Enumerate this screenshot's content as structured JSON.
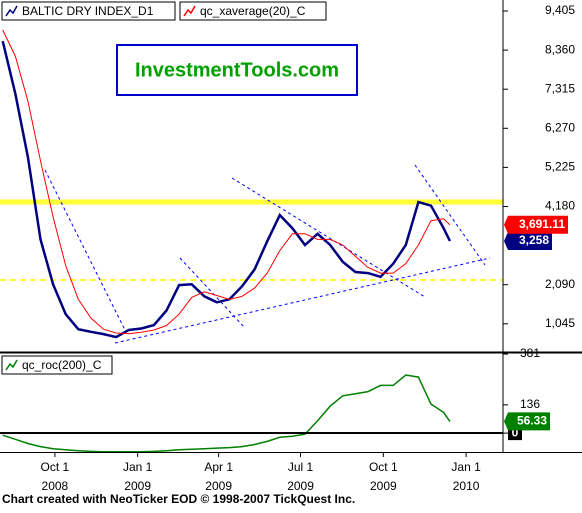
{
  "chart_data": {
    "type": "line",
    "title": "InvestmentTools.com",
    "footer": "Chart created with NeoTicker EOD © 1998-2007 TickQuest Inc.",
    "x": [
      "2008-08-04",
      "2008-08-18",
      "2008-09-01",
      "2008-09-15",
      "2008-09-29",
      "2008-10-13",
      "2008-10-27",
      "2008-11-10",
      "2008-11-24",
      "2008-12-08",
      "2008-12-22",
      "2009-01-05",
      "2009-01-19",
      "2009-02-02",
      "2009-02-16",
      "2009-03-02",
      "2009-03-16",
      "2009-03-30",
      "2009-04-13",
      "2009-04-27",
      "2009-05-11",
      "2009-05-25",
      "2009-06-08",
      "2009-06-22",
      "2009-07-06",
      "2009-07-20",
      "2009-08-03",
      "2009-08-17",
      "2009-08-31",
      "2009-09-14",
      "2009-09-28",
      "2009-10-12",
      "2009-10-26",
      "2009-11-09",
      "2009-11-23",
      "2009-12-07",
      "2009-12-14"
    ],
    "xlim": [
      "2008-08-01",
      "2010-02-11"
    ],
    "xticks": [
      {
        "value": "2008-10-01",
        "label": "Oct 1",
        "sublabel": "2008"
      },
      {
        "value": "2009-01-01",
        "label": "Jan 1",
        "sublabel": "2009"
      },
      {
        "value": "2009-04-01",
        "label": "Apr 1",
        "sublabel": "2009"
      },
      {
        "value": "2009-07-01",
        "label": "Jul 1",
        "sublabel": "2009"
      },
      {
        "value": "2009-10-01",
        "label": "Oct 1",
        "sublabel": "2009"
      },
      {
        "value": "2010-01-01",
        "label": "Jan 1",
        "sublabel": "2010"
      }
    ],
    "ylim": [
      291,
      9699
    ],
    "yticks": [
      {
        "value": 9405,
        "label": "9,405"
      },
      {
        "value": 8360,
        "label": "8,360"
      },
      {
        "value": 7315,
        "label": "7,315"
      },
      {
        "value": 6270,
        "label": "6,270"
      },
      {
        "value": 5225,
        "label": "5,225"
      },
      {
        "value": 4180,
        "label": "4,180"
      },
      {
        "value": 2090,
        "label": "2,090"
      },
      {
        "value": 1045,
        "label": "1,045"
      }
    ],
    "y2lim": [
      -91,
      386
    ],
    "y2ticks": [
      381,
      136,
      0
    ],
    "series": [
      {
        "name": "BALTIC DRY INDEX_D1",
        "color": "#000080",
        "values": [
          8600,
          7200,
          5500,
          3300,
          2100,
          1300,
          900,
          830,
          770,
          690,
          880,
          920,
          1010,
          1400,
          2080,
          2100,
          1780,
          1620,
          1700,
          2050,
          2500,
          3250,
          3950,
          3600,
          3150,
          3450,
          3150,
          2700,
          2430,
          2400,
          2300,
          2650,
          3150,
          4300,
          4200,
          3600,
          3258
        ],
        "value_labels": [
          null,
          null,
          null,
          null,
          null,
          null,
          null,
          null,
          null,
          null,
          null,
          null,
          null,
          null,
          null,
          null,
          null,
          null,
          null,
          null,
          null,
          null,
          null,
          null,
          null,
          null,
          null,
          null,
          null,
          null,
          null,
          null,
          null,
          null,
          null,
          null,
          "3,258"
        ]
      },
      {
        "name": "qc_xaverage(20)_C",
        "color": "#ff0000",
        "values": [
          8900,
          8200,
          7000,
          5400,
          3900,
          2600,
          1700,
          1200,
          900,
          800,
          780,
          820,
          880,
          1000,
          1300,
          1750,
          1900,
          1800,
          1700,
          1780,
          2000,
          2400,
          3000,
          3450,
          3450,
          3300,
          3300,
          3150,
          2850,
          2550,
          2400,
          2400,
          2650,
          3150,
          3800,
          3850,
          3691.11
        ],
        "value_labels": [
          null,
          null,
          null,
          null,
          null,
          null,
          null,
          null,
          null,
          null,
          null,
          null,
          null,
          null,
          null,
          null,
          null,
          null,
          null,
          null,
          null,
          null,
          null,
          null,
          null,
          null,
          null,
          null,
          null,
          null,
          null,
          null,
          null,
          null,
          null,
          null,
          "3,691.11"
        ]
      },
      {
        "name": "qc_roc(200)_C",
        "color": "#008000",
        "axis": "y2",
        "values": [
          -10,
          -30,
          -50,
          -65,
          -75,
          -80,
          -85,
          -88,
          -90,
          -90,
          -90,
          -90,
          -88,
          -85,
          -80,
          -78,
          -75,
          -72,
          -70,
          -65,
          -55,
          -40,
          -20,
          -15,
          -5,
          60,
          130,
          180,
          190,
          200,
          230,
          230,
          280,
          270,
          140,
          100,
          56.33
        ]
      }
    ]
  }
}
